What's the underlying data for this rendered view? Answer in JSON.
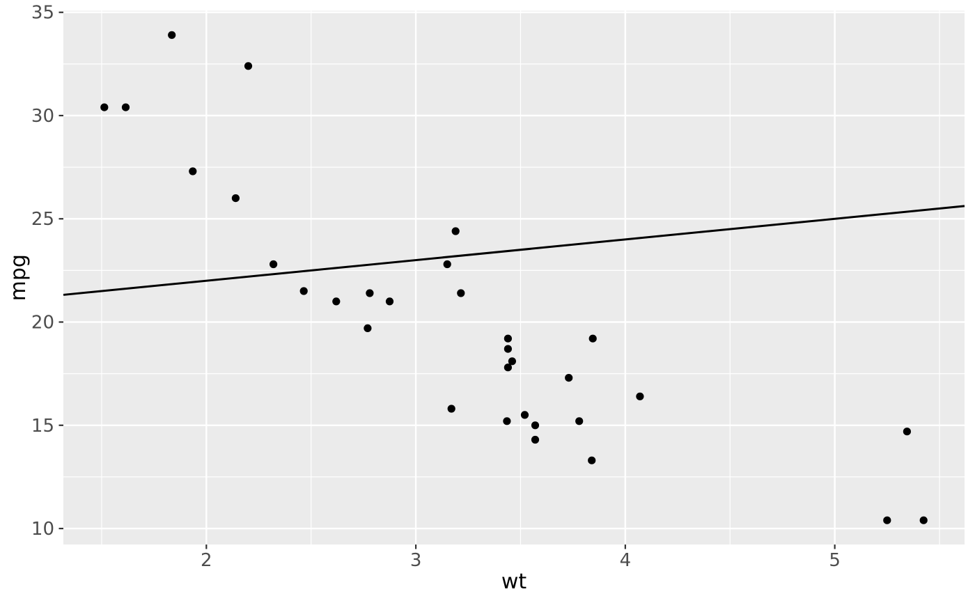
{
  "chart_data": {
    "type": "scatter",
    "title": "",
    "xlabel": "wt",
    "ylabel": "mpg",
    "x_ticks": [
      2,
      3,
      4,
      5
    ],
    "x_minor_ticks": [
      1.5,
      2.5,
      3.5,
      4.5,
      5.5
    ],
    "y_ticks": [
      10,
      15,
      20,
      25,
      30,
      35
    ],
    "y_minor_ticks": [
      12.5,
      17.5,
      22.5,
      27.5,
      32.5
    ],
    "xlim": [
      1.3174,
      5.6196
    ],
    "ylim": [
      9.2255,
      35.0745
    ],
    "grid": "on",
    "legend_position": "none",
    "points": [
      [
        2.62,
        21.0
      ],
      [
        2.875,
        21.0
      ],
      [
        2.32,
        22.8
      ],
      [
        3.215,
        21.4
      ],
      [
        3.44,
        18.7
      ],
      [
        3.46,
        18.1
      ],
      [
        3.57,
        14.3
      ],
      [
        3.19,
        24.4
      ],
      [
        3.15,
        22.8
      ],
      [
        3.44,
        19.2
      ],
      [
        3.44,
        17.8
      ],
      [
        4.07,
        16.4
      ],
      [
        3.73,
        17.3
      ],
      [
        3.78,
        15.2
      ],
      [
        5.25,
        10.4
      ],
      [
        5.424,
        10.4
      ],
      [
        5.345,
        14.7
      ],
      [
        2.2,
        32.4
      ],
      [
        1.615,
        30.4
      ],
      [
        1.835,
        33.9
      ],
      [
        2.465,
        21.5
      ],
      [
        3.52,
        15.5
      ],
      [
        3.435,
        15.2
      ],
      [
        3.84,
        13.3
      ],
      [
        3.845,
        19.2
      ],
      [
        1.935,
        27.3
      ],
      [
        2.14,
        26.0
      ],
      [
        1.513,
        30.4
      ],
      [
        3.17,
        15.8
      ],
      [
        2.77,
        19.7
      ],
      [
        3.57,
        15.0
      ],
      [
        2.78,
        21.4
      ]
    ],
    "trend_line": {
      "type": "abline",
      "intercept": 20,
      "slope": 1
    },
    "colors": {
      "figure_background": "#FFFFFF",
      "panel_background": "#EBEBEB",
      "grid_major": "#FFFFFF",
      "grid_minor": "#FFFFFF",
      "point": "#000000",
      "line": "#000000",
      "tick_mark": "#333333",
      "tick_label": "#4D4D4D",
      "axis_title": "#000000"
    }
  }
}
